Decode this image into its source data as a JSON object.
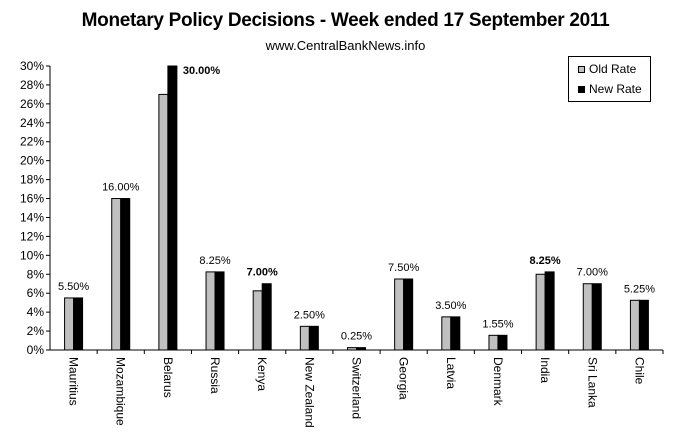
{
  "chart_data": {
    "type": "bar",
    "title": "Monetary Policy Decisions - Week ended 17 September 2011",
    "subtitle": "www.CentralBankNews.info",
    "xlabel": "",
    "ylabel": "",
    "ylim": [
      0,
      30
    ],
    "yticks": [
      "0%",
      "2%",
      "4%",
      "6%",
      "8%",
      "10%",
      "12%",
      "14%",
      "16%",
      "18%",
      "20%",
      "22%",
      "24%",
      "26%",
      "28%",
      "30%"
    ],
    "categories": [
      "Mauritius",
      "Mozambique",
      "Belarus",
      "Russia",
      "Kenya",
      "New Zealand",
      "Switzerland",
      "Georgia",
      "Latvia",
      "Denmark",
      "India",
      "Sri Lanka",
      "Chile"
    ],
    "series": [
      {
        "name": "Old Rate",
        "color": "#c0c0c0",
        "values": [
          5.5,
          16.0,
          27.0,
          8.25,
          6.25,
          2.5,
          0.25,
          7.5,
          3.5,
          1.55,
          8.0,
          7.0,
          5.25
        ]
      },
      {
        "name": "New Rate",
        "color": "#000000",
        "values": [
          5.5,
          16.0,
          30.0,
          8.25,
          7.0,
          2.5,
          0.25,
          7.5,
          3.5,
          1.55,
          8.25,
          7.0,
          5.25
        ]
      }
    ],
    "data_labels": [
      "5.50%",
      "16.00%",
      "30.00%",
      "8.25%",
      "7.00%",
      "2.50%",
      "0.25%",
      "7.50%",
      "3.50%",
      "1.55%",
      "8.25%",
      "7.00%",
      "5.25%"
    ],
    "changed": [
      false,
      false,
      true,
      false,
      true,
      false,
      false,
      false,
      false,
      false,
      true,
      false,
      false
    ],
    "legend_position": "top-right"
  }
}
